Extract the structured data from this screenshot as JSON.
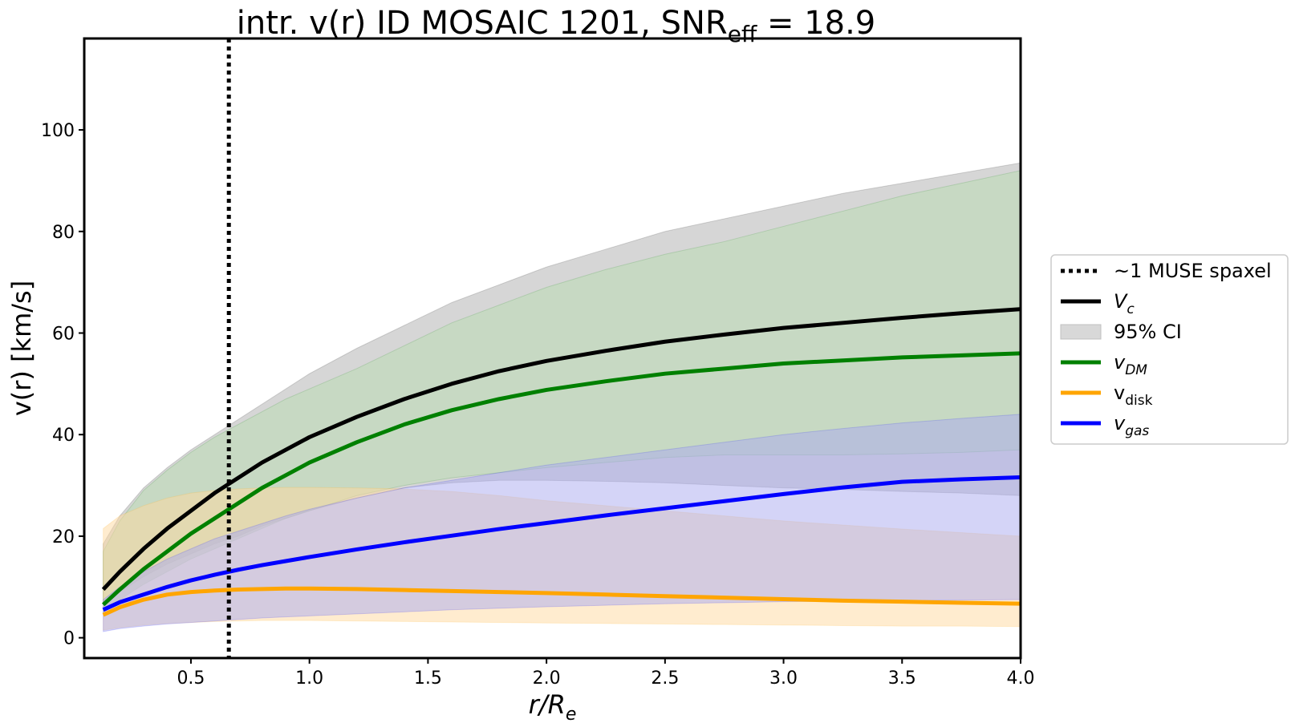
{
  "chart_data": {
    "type": "line",
    "title": {
      "prefix": "intr. v(r) ID MOSAIC 1201, SNR",
      "subscript": "eff",
      "suffix": " = 18.9"
    },
    "xlabel": {
      "main": "r/R",
      "subscript": "e"
    },
    "ylabel": "v(r) [km/s]",
    "xlim": [
      0.05,
      4.0
    ],
    "ylim": [
      -4,
      118
    ],
    "xticks": [
      0.5,
      1.0,
      1.5,
      2.0,
      2.5,
      3.0,
      3.5,
      4.0
    ],
    "xtick_labels": [
      "0.5",
      "1.0",
      "1.5",
      "2.0",
      "2.5",
      "3.0",
      "3.5",
      "4.0"
    ],
    "yticks": [
      0,
      20,
      40,
      60,
      80,
      100
    ],
    "ytick_labels": [
      "0",
      "20",
      "40",
      "60",
      "80",
      "100"
    ],
    "grid": false,
    "legend_position": "right-outside",
    "vline": {
      "x": 0.66,
      "label": "~1 MUSE spaxel",
      "color": "#000000",
      "style": "dotted"
    },
    "x": [
      0.13,
      0.2,
      0.3,
      0.4,
      0.5,
      0.6,
      0.7,
      0.8,
      0.9,
      1.0,
      1.2,
      1.4,
      1.6,
      1.8,
      2.0,
      2.25,
      2.5,
      2.75,
      3.0,
      3.25,
      3.5,
      3.75,
      4.0
    ],
    "series": [
      {
        "name": "V",
        "name_subscript": "c",
        "color": "#000000",
        "values": [
          9.5,
          13.0,
          17.5,
          21.5,
          25.0,
          28.5,
          31.5,
          34.5,
          37.0,
          39.5,
          43.5,
          47.0,
          50.0,
          52.5,
          54.5,
          56.5,
          58.3,
          59.7,
          61.0,
          62.0,
          63.0,
          63.9,
          64.7
        ],
        "band_lower": [
          7.0,
          9.0,
          12.0,
          14.5,
          16.5,
          18.5,
          20.0,
          22.0,
          23.5,
          25.0,
          27.5,
          29.5,
          30.5,
          31.0,
          31.0,
          30.8,
          30.5,
          30.0,
          29.5,
          29.2,
          28.8,
          28.5,
          28.0
        ],
        "band_upper": [
          18.5,
          24.0,
          29.5,
          33.5,
          37.0,
          40.0,
          43.0,
          46.0,
          49.0,
          52.0,
          57.0,
          61.5,
          66.0,
          69.5,
          73.0,
          76.5,
          80.0,
          82.5,
          85.0,
          87.5,
          89.5,
          91.5,
          93.5
        ]
      },
      {
        "name": "v",
        "name_subscript": "DM",
        "color": "#008000",
        "values": [
          6.5,
          9.5,
          13.5,
          17.0,
          20.5,
          23.5,
          26.5,
          29.5,
          32.0,
          34.5,
          38.5,
          42.0,
          44.8,
          47.0,
          48.8,
          50.5,
          52.0,
          53.0,
          54.0,
          54.6,
          55.2,
          55.6,
          56.0
        ],
        "band_lower": [
          5.0,
          7.5,
          10.5,
          13.0,
          15.5,
          17.5,
          19.5,
          21.5,
          23.5,
          25.0,
          28.0,
          30.0,
          31.5,
          32.5,
          33.5,
          34.5,
          35.5,
          36.0,
          36.0,
          36.0,
          36.2,
          36.5,
          37.0
        ],
        "band_upper": [
          17.0,
          23.0,
          29.0,
          33.0,
          36.5,
          39.5,
          42.0,
          44.5,
          47.0,
          49.0,
          53.0,
          57.5,
          62.0,
          65.5,
          69.0,
          72.5,
          75.5,
          78.0,
          81.0,
          84.0,
          87.0,
          89.5,
          92.0
        ]
      },
      {
        "name": "v",
        "name_subscript": "disk",
        "color": "#FFA500",
        "values": [
          4.5,
          6.0,
          7.5,
          8.5,
          9.0,
          9.3,
          9.5,
          9.6,
          9.7,
          9.7,
          9.6,
          9.4,
          9.2,
          9.0,
          8.8,
          8.5,
          8.2,
          7.9,
          7.6,
          7.3,
          7.1,
          6.9,
          6.7
        ],
        "band_lower": [
          1.5,
          2.0,
          2.5,
          2.8,
          3.0,
          3.2,
          3.3,
          3.4,
          3.4,
          3.4,
          3.3,
          3.2,
          3.1,
          3.0,
          2.9,
          2.8,
          2.7,
          2.6,
          2.5,
          2.4,
          2.3,
          2.3,
          2.2
        ],
        "band_upper": [
          21.5,
          24.0,
          26.0,
          27.5,
          28.5,
          29.0,
          29.3,
          29.5,
          29.6,
          29.6,
          29.5,
          29.3,
          28.8,
          28.0,
          27.0,
          26.0,
          25.0,
          24.0,
          23.0,
          22.2,
          21.4,
          20.7,
          20.0
        ]
      },
      {
        "name": "v",
        "name_subscript": "gas",
        "color": "#0000FF",
        "values": [
          5.5,
          7.0,
          8.5,
          10.0,
          11.3,
          12.4,
          13.4,
          14.3,
          15.1,
          15.9,
          17.4,
          18.8,
          20.1,
          21.4,
          22.6,
          24.1,
          25.5,
          26.9,
          28.3,
          29.6,
          30.7,
          31.2,
          31.6
        ],
        "band_lower": [
          1.2,
          1.8,
          2.3,
          2.7,
          3.0,
          3.3,
          3.6,
          3.9,
          4.1,
          4.3,
          4.7,
          5.1,
          5.5,
          5.8,
          6.1,
          6.4,
          6.7,
          6.9,
          7.1,
          7.2,
          7.3,
          7.4,
          7.5
        ],
        "band_upper": [
          7.5,
          10.0,
          13.0,
          15.5,
          17.5,
          19.5,
          21.0,
          22.5,
          24.0,
          25.3,
          27.5,
          29.5,
          31.0,
          32.5,
          34.0,
          35.5,
          37.0,
          38.5,
          40.0,
          41.2,
          42.3,
          43.2,
          44.0
        ]
      }
    ],
    "legend": [
      {
        "kind": "vline",
        "text": "~1 MUSE spaxel",
        "subscript": "",
        "color": "#000000"
      },
      {
        "kind": "line",
        "text": "V",
        "subscript": "c",
        "color": "#000000",
        "italic": true
      },
      {
        "kind": "band",
        "text": "95% CI",
        "subscript": "",
        "color": "#bdbdbd"
      },
      {
        "kind": "line",
        "text": "v",
        "subscript": "DM",
        "color": "#008000",
        "italic": true
      },
      {
        "kind": "line",
        "text": "v",
        "subscript": "disk",
        "color": "#FFA500",
        "italic": false
      },
      {
        "kind": "line",
        "text": "v",
        "subscript": "gas",
        "color": "#0000FF",
        "italic": true
      }
    ],
    "band_fill_colors": {
      "V_c": "#c8c8c8",
      "v_DM": "#b7dcb0",
      "v_disk": "#ffd9a0",
      "v_gas": "#a9a9f0"
    }
  }
}
